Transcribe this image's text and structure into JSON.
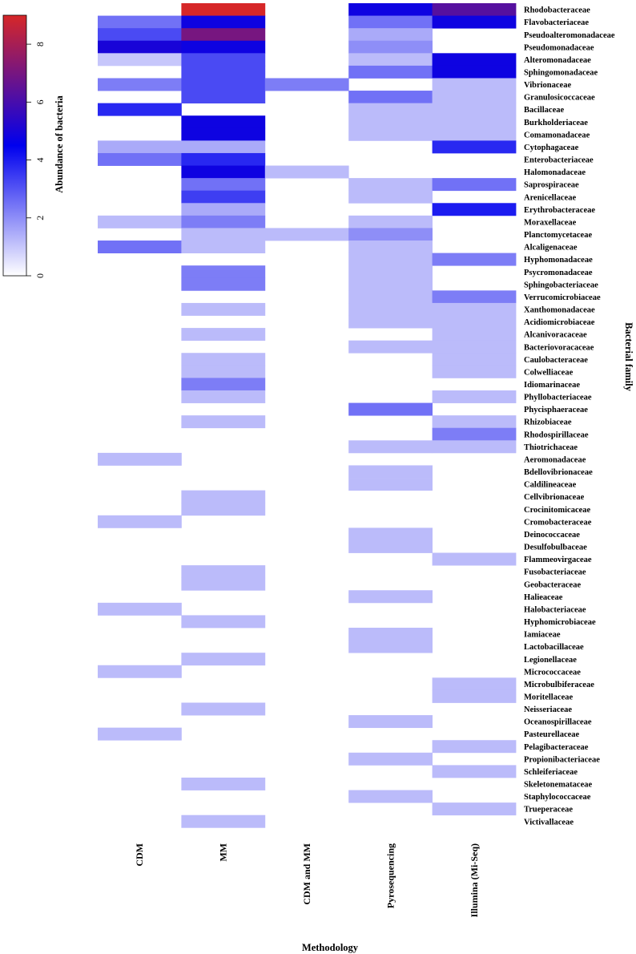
{
  "chart_data": {
    "type": "heatmap",
    "xlabel": "Methodology",
    "ylabel": "Bacterial family",
    "legend_title": "Abundance of bacteria",
    "legend_ticks": [
      "0",
      "2",
      "4",
      "6",
      "8"
    ],
    "value_range": [
      0,
      9
    ],
    "color_low": "#ffffff",
    "color_mid": "#0000ee",
    "color_high": "#d62728",
    "legend_placement": "top-left",
    "columns": [
      "CDM",
      "MM",
      "CDM and MM",
      "Pyrosequencing",
      "Illumina (Mi-Seq)"
    ],
    "rows": [
      {
        "name": "Rhodobacteraceae",
        "values": [
          0,
          9,
          0,
          4.8,
          6.3
        ]
      },
      {
        "name": "Flavobacteriaceae",
        "values": [
          2.5,
          4.8,
          0,
          2.5,
          4.8
        ]
      },
      {
        "name": "Pseudoalteromonadaceae",
        "values": [
          3.2,
          7.0,
          0,
          1.5,
          0
        ]
      },
      {
        "name": "Pseudomonadaceae",
        "values": [
          5.0,
          4.8,
          0,
          2.0,
          0
        ]
      },
      {
        "name": "Alteromonadaceae",
        "values": [
          1.0,
          3.2,
          0,
          1.2,
          4.8
        ]
      },
      {
        "name": "Sphingomonadaceae",
        "values": [
          0,
          3.2,
          0,
          2.5,
          4.8
        ]
      },
      {
        "name": "Vibrionaceae",
        "values": [
          2.3,
          3.2,
          2.3,
          0,
          1.2
        ]
      },
      {
        "name": "Granulosicoccaceae",
        "values": [
          0,
          3.2,
          0,
          2.5,
          1.2
        ]
      },
      {
        "name": "Bacillaceae",
        "values": [
          3.8,
          0,
          0,
          1.2,
          1.2
        ]
      },
      {
        "name": "Burkholderiaceae",
        "values": [
          0,
          4.8,
          0,
          1.2,
          1.2
        ]
      },
      {
        "name": "Comamonadaceae",
        "values": [
          0,
          4.8,
          0,
          1.2,
          1.2
        ]
      },
      {
        "name": "Cytophagaceae",
        "values": [
          1.5,
          1.5,
          0,
          0,
          3.8
        ]
      },
      {
        "name": "Enterobacteriaceae",
        "values": [
          2.5,
          3.8,
          0,
          0,
          0
        ]
      },
      {
        "name": "Halomonadaceae",
        "values": [
          0,
          4.8,
          1.2,
          0,
          0
        ]
      },
      {
        "name": "Saprospiraceae",
        "values": [
          0,
          2.5,
          0,
          1.2,
          2.5
        ]
      },
      {
        "name": "Arenicellaceae",
        "values": [
          0,
          3.4,
          0,
          1.2,
          0
        ]
      },
      {
        "name": "Erythrobacteraceae",
        "values": [
          0,
          1.5,
          0,
          0,
          4.0
        ]
      },
      {
        "name": "Moraxellaceae",
        "values": [
          1.2,
          2.3,
          0,
          1.2,
          0
        ]
      },
      {
        "name": "Planctomycetaceae",
        "values": [
          0,
          1.2,
          1.2,
          2.0,
          0
        ]
      },
      {
        "name": "Alcaligenaceae",
        "values": [
          2.5,
          1.2,
          0,
          1.2,
          0
        ]
      },
      {
        "name": "Hyphomonadaceae",
        "values": [
          0,
          0,
          0,
          1.2,
          2.3
        ]
      },
      {
        "name": "Psycromonadaceae",
        "values": [
          0,
          2.3,
          0,
          1.2,
          0
        ]
      },
      {
        "name": "Sphingobacteriaceae",
        "values": [
          0,
          2.3,
          0,
          1.2,
          0
        ]
      },
      {
        "name": "Verrucomicrobiaceae",
        "values": [
          0,
          0,
          0,
          1.2,
          2.3
        ]
      },
      {
        "name": "Xanthomonadaceae",
        "values": [
          0,
          1.2,
          0,
          1.2,
          1.2
        ]
      },
      {
        "name": "Acidiomicrobiaceae",
        "values": [
          0,
          0,
          0,
          1.2,
          1.2
        ]
      },
      {
        "name": "Alcanivoracaceae",
        "values": [
          0,
          1.2,
          0,
          0,
          1.2
        ]
      },
      {
        "name": "Bacteriovoracaceae",
        "values": [
          0,
          0,
          0,
          1.2,
          1.2
        ]
      },
      {
        "name": "Caulobacteraceae",
        "values": [
          0,
          1.2,
          0,
          0,
          1.2
        ]
      },
      {
        "name": "Colwelliaceae",
        "values": [
          0,
          1.2,
          0,
          0,
          1.2
        ]
      },
      {
        "name": "Idiomarinaceae",
        "values": [
          0,
          2.3,
          0,
          0,
          0
        ]
      },
      {
        "name": "Phyllobacteriaceae",
        "values": [
          0,
          1.2,
          0,
          0,
          1.2
        ]
      },
      {
        "name": "Phycisphaeraceae",
        "values": [
          0,
          0,
          0,
          2.5,
          0
        ]
      },
      {
        "name": "Rhizobiaceae",
        "values": [
          0,
          1.2,
          0,
          0,
          1.2
        ]
      },
      {
        "name": "Rhodospirillaceae",
        "values": [
          0,
          0,
          0,
          0,
          2.3
        ]
      },
      {
        "name": "Thiotrichaceae",
        "values": [
          0,
          0,
          0,
          1.2,
          1.2
        ]
      },
      {
        "name": "Aeromonadaceae",
        "values": [
          1.2,
          0,
          0,
          0,
          0
        ]
      },
      {
        "name": "Bdellovibrionaceae",
        "values": [
          0,
          0,
          0,
          1.2,
          0
        ]
      },
      {
        "name": "Caldilineaceae",
        "values": [
          0,
          0,
          0,
          1.2,
          0
        ]
      },
      {
        "name": "Cellvibrionaceae",
        "values": [
          0,
          1.2,
          0,
          0,
          0
        ]
      },
      {
        "name": "Crocinitomicaceae",
        "values": [
          0,
          1.2,
          0,
          0,
          0
        ]
      },
      {
        "name": "Cromobacteraceae",
        "values": [
          1.2,
          0,
          0,
          0,
          0
        ]
      },
      {
        "name": "Deinococcaceae",
        "values": [
          0,
          0,
          0,
          1.2,
          0
        ]
      },
      {
        "name": "Desulfobulbaceae",
        "values": [
          0,
          0,
          0,
          1.2,
          0
        ]
      },
      {
        "name": "Flammeovirgaceae",
        "values": [
          0,
          0,
          0,
          0,
          1.2
        ]
      },
      {
        "name": "Fusobacteriaceae",
        "values": [
          0,
          1.2,
          0,
          0,
          0
        ]
      },
      {
        "name": "Geobacteraceae",
        "values": [
          0,
          1.2,
          0,
          0,
          0
        ]
      },
      {
        "name": "Halieaceae",
        "values": [
          0,
          0,
          0,
          1.2,
          0
        ]
      },
      {
        "name": "Halobacteriaceae",
        "values": [
          1.2,
          0,
          0,
          0,
          0
        ]
      },
      {
        "name": "Hyphomicrobiaceae",
        "values": [
          0,
          1.2,
          0,
          0,
          0
        ]
      },
      {
        "name": "Iamiaceae",
        "values": [
          0,
          0,
          0,
          1.2,
          0
        ]
      },
      {
        "name": "Lactobacillaceae",
        "values": [
          0,
          0,
          0,
          1.2,
          0
        ]
      },
      {
        "name": "Legionellaceae",
        "values": [
          0,
          1.2,
          0,
          0,
          0
        ]
      },
      {
        "name": "Micrococcaceae",
        "values": [
          1.2,
          0,
          0,
          0,
          0
        ]
      },
      {
        "name": "Microbulbiferaceae",
        "values": [
          0,
          0,
          0,
          0,
          1.2
        ]
      },
      {
        "name": "Moritellaceae",
        "values": [
          0,
          0,
          0,
          0,
          1.2
        ]
      },
      {
        "name": "Neisseriaceae",
        "values": [
          0,
          1.2,
          0,
          0,
          0
        ]
      },
      {
        "name": "Oceanospirillaceae",
        "values": [
          0,
          0,
          0,
          1.2,
          0
        ]
      },
      {
        "name": "Pasteurellaceae",
        "values": [
          1.2,
          0,
          0,
          0,
          0
        ]
      },
      {
        "name": "Pelagibacteraceae",
        "values": [
          0,
          0,
          0,
          0,
          1.2
        ]
      },
      {
        "name": "Propionibacteriaceae",
        "values": [
          0,
          0,
          0,
          1.2,
          0
        ]
      },
      {
        "name": "Schleiferiaceae",
        "values": [
          0,
          0,
          0,
          0,
          1.2
        ]
      },
      {
        "name": "Skeletonemataceae",
        "values": [
          0,
          1.2,
          0,
          0,
          0
        ]
      },
      {
        "name": "Staphylococcaceae",
        "values": [
          0,
          0,
          0,
          1.2,
          0
        ]
      },
      {
        "name": "Trueperaceae",
        "values": [
          0,
          0,
          0,
          0,
          1.2
        ]
      },
      {
        "name": "Victivallaceae",
        "values": [
          0,
          1.2,
          0,
          0,
          0
        ]
      }
    ]
  }
}
